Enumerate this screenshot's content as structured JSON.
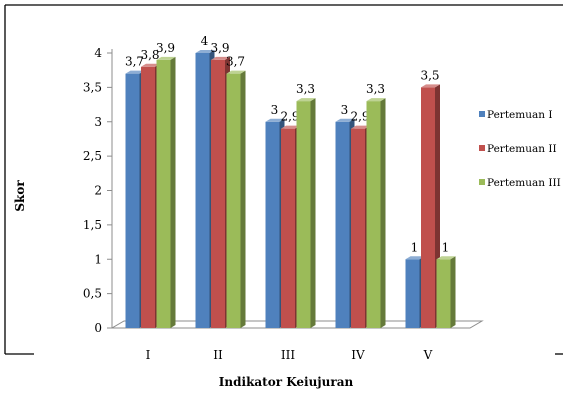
{
  "chart_data": {
    "type": "bar",
    "title": "",
    "xlabel": "Indikator Keiujuran",
    "ylabel": "Skor",
    "ylim": [
      0,
      4
    ],
    "ytick_step": 0.5,
    "y_tick_labels": [
      "0",
      "0,5",
      "1",
      "1,5",
      "2",
      "2,5",
      "3",
      "3,5",
      "4"
    ],
    "categories": [
      "I",
      "II",
      "III",
      "IV",
      "V"
    ],
    "series": [
      {
        "name": "Pertemuan I",
        "color": "#4f81bd",
        "values": [
          3.7,
          4,
          3,
          3,
          1
        ],
        "labels": [
          "3,7",
          "4",
          "3",
          "3",
          "1"
        ]
      },
      {
        "name": "Pertemuan II",
        "color": "#c0504d",
        "values": [
          3.8,
          3.9,
          2.9,
          2.9,
          3.5
        ],
        "labels": [
          "3,8",
          "3,9",
          "2,9",
          "2,9",
          "3,5"
        ]
      },
      {
        "name": "Pertemuan III",
        "color": "#9bbb59",
        "values": [
          3.9,
          3.7,
          3.3,
          3.3,
          1
        ],
        "labels": [
          "3,9",
          "3,7",
          "3,3",
          "3,3",
          "1"
        ]
      }
    ],
    "legend_position": "right",
    "grid": false,
    "style": "3d-clustered-column"
  }
}
